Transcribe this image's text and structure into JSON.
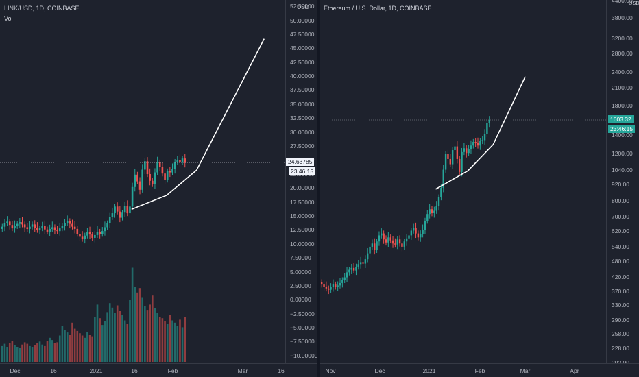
{
  "colors": {
    "background": "#1e222d",
    "grid": "#2a2e39",
    "up": "#26a69a",
    "down": "#ef5350",
    "trendline": "#ffffff",
    "text": "#b2b5be"
  },
  "left": {
    "legend": {
      "title": "LINK/USD, 1D, COINBASE",
      "indicator": "Vol"
    },
    "unit": "USD",
    "price_label": "24.63785",
    "countdown_label": "23:46:15",
    "y_ticks": [
      "52.50000",
      "50.00000",
      "47.50000",
      "45.00000",
      "42.50000",
      "40.00000",
      "37.50000",
      "35.00000",
      "32.50000",
      "30.00000",
      "27.50000",
      "25.00000",
      "22.50000",
      "20.00000",
      "17.50000",
      "15.00000",
      "12.50000",
      "10.00000",
      "7.50000",
      "5.00000",
      "2.50000",
      "0.00000",
      "−2.50000",
      "−5.00000",
      "−7.50000",
      "−10.00000"
    ],
    "x_ticks": [
      "Dec",
      "16",
      "2021",
      "16",
      "Feb",
      "Mar",
      "16"
    ]
  },
  "right": {
    "legend": {
      "title": "Ethereum / U.S. Dollar, 1D, COINBASE"
    },
    "unit": "USD",
    "price_label": "1603.32",
    "countdown_label": "23:46:15",
    "y_ticks": [
      "4400.00",
      "3800.00",
      "3200.00",
      "2800.00",
      "2400.00",
      "2100.00",
      "1800.00",
      "1400.00",
      "1200.00",
      "1040.00",
      "920.00",
      "800.00",
      "700.00",
      "620.00",
      "540.00",
      "480.00",
      "420.00",
      "370.00",
      "330.00",
      "290.00",
      "258.00",
      "228.00",
      "202.00"
    ],
    "x_ticks": [
      "Nov",
      "Dec",
      "2021",
      "Feb",
      "Mar",
      "Apr"
    ]
  },
  "chart_data": [
    {
      "type": "candlestick",
      "title": "LINK/USD, 1D, COINBASE",
      "ylabel": "USD",
      "ylim": [
        -11,
        53.5
      ],
      "grid": false,
      "series": [
        {
          "name": "LINK/USD",
          "close": [
            13.2,
            13.8,
            14.1,
            13.5,
            12.9,
            13.3,
            13.7,
            14.0,
            13.6,
            13.1,
            12.8,
            13.2,
            13.6,
            13.0,
            12.6,
            12.9,
            13.3,
            12.7,
            12.3,
            12.8,
            13.1,
            12.6,
            12.4,
            12.9,
            13.3,
            13.8,
            14.2,
            13.7,
            13.2,
            12.8,
            11.9,
            11.4,
            11.0,
            11.6,
            12.2,
            11.8,
            11.2,
            11.7,
            12.3,
            11.9,
            12.4,
            13.1,
            13.8,
            14.9,
            15.6,
            16.8,
            15.9,
            14.8,
            15.7,
            16.9,
            15.6,
            16.8,
            20.3,
            22.5,
            21.3,
            19.8,
            23.4,
            24.9,
            22.6,
            21.4,
            20.8,
            22.9,
            24.7,
            23.9,
            22.7,
            21.6,
            23.1,
            22.9,
            23.5,
            24.8,
            25.1,
            24.7,
            25.4,
            24.6
          ]
        },
        {
          "name": "Vol",
          "values": [
            2.1,
            2.4,
            2.0,
            2.5,
            2.8,
            2.2,
            2.0,
            1.9,
            2.3,
            2.6,
            2.4,
            2.1,
            2.0,
            2.2,
            2.5,
            2.7,
            2.3,
            2.1,
            2.8,
            3.2,
            2.9,
            2.5,
            2.6,
            3.5,
            4.8,
            4.2,
            3.9,
            3.6,
            5.2,
            4.4,
            4.1,
            3.8,
            3.5,
            3.2,
            4.0,
            3.6,
            3.4,
            6.0,
            7.6,
            5.8,
            4.9,
            5.4,
            6.6,
            7.8,
            7.2,
            6.5,
            7.5,
            6.8,
            6.2,
            5.5,
            5.0,
            8.2,
            12.5,
            10.0,
            9.2,
            9.8,
            8.5,
            7.4,
            6.9,
            7.6,
            8.8,
            7.1,
            6.5,
            6.0,
            5.8,
            5.4,
            5.0,
            6.2,
            5.5,
            5.2,
            4.8,
            5.6,
            4.6,
            6.0
          ]
        }
      ]
    },
    {
      "type": "candlestick",
      "title": "Ethereum / U.S. Dollar, 1D, COINBASE",
      "ylabel": "USD",
      "scale": "log",
      "ylim": [
        202,
        4400
      ],
      "grid": false,
      "series": [
        {
          "name": "ETH/USD",
          "close": [
            395,
            388,
            382,
            378,
            386,
            395,
            388,
            392,
            400,
            410,
            420,
            438,
            448,
            455,
            445,
            460,
            470,
            478,
            472,
            490,
            515,
            545,
            560,
            530,
            570,
            600,
            610,
            580,
            565,
            590,
            575,
            560,
            555,
            580,
            560,
            545,
            570,
            585,
            600,
            625,
            640,
            610,
            590,
            605,
            630,
            680,
            720,
            750,
            725,
            740,
            770,
            830,
            900,
            1050,
            1200,
            1150,
            1100,
            1240,
            1280,
            1150,
            1030,
            1220,
            1260,
            1210,
            1250,
            1290,
            1330,
            1320,
            1290,
            1340,
            1350,
            1420,
            1560,
            1603
          ]
        }
      ]
    }
  ]
}
